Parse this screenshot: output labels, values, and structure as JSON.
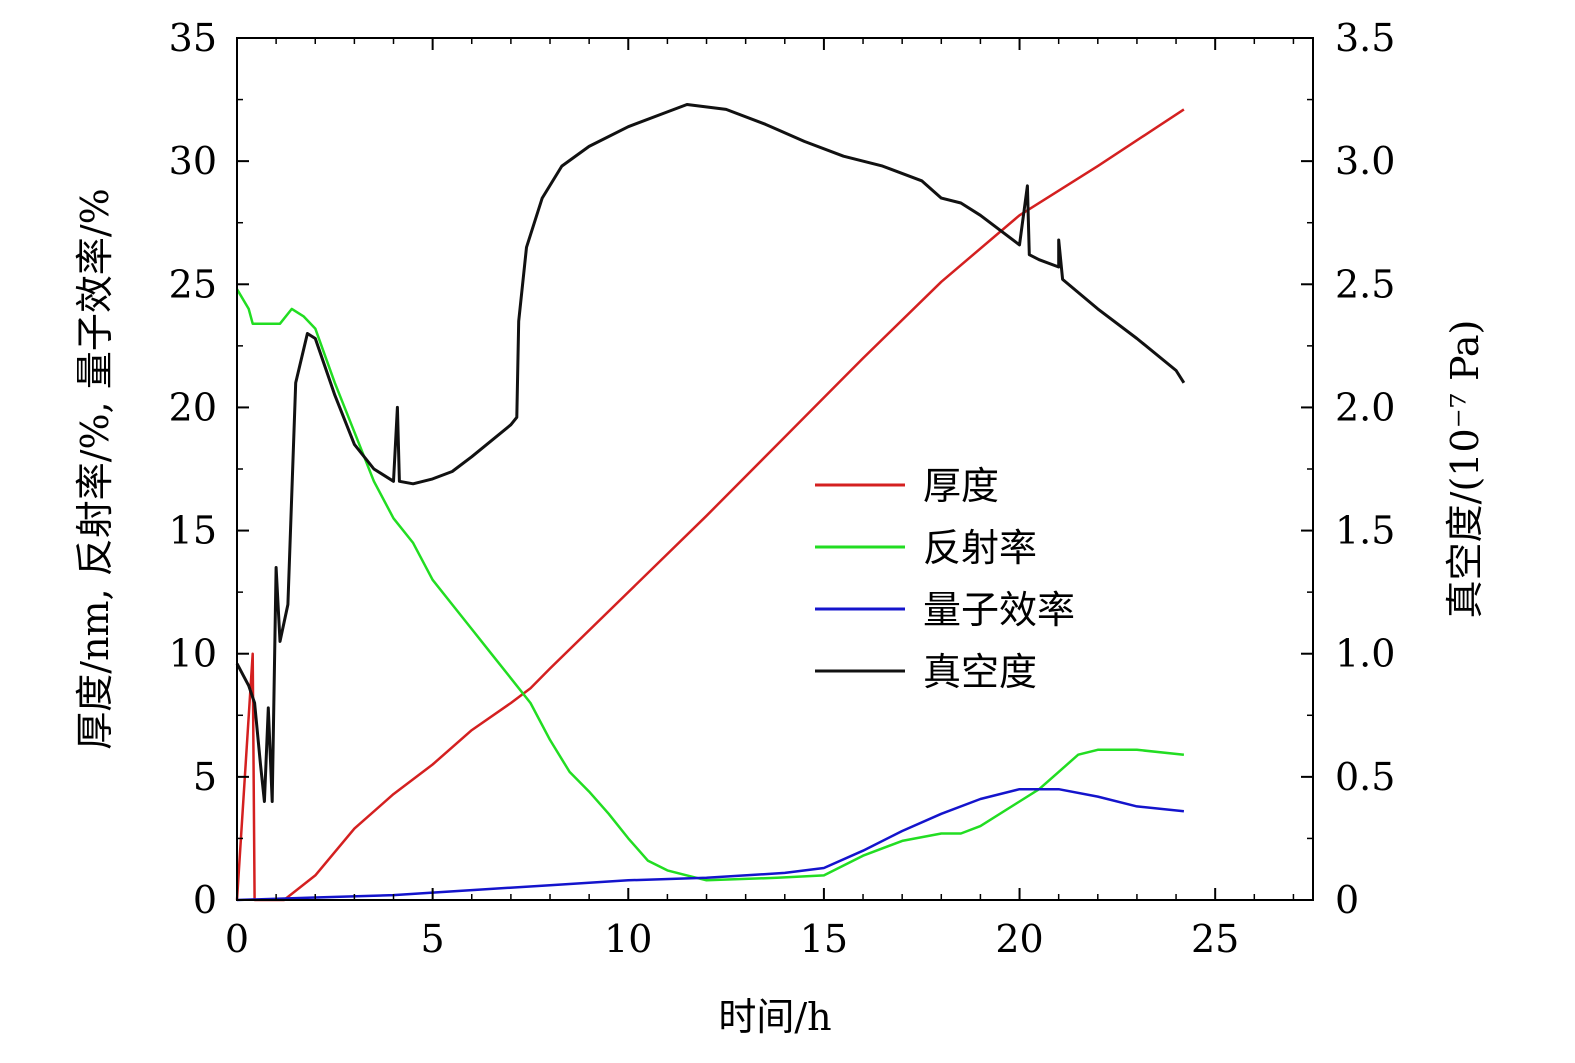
{
  "chart_data": {
    "type": "line",
    "xlabel": "时间/h",
    "ylabel_left": "厚度/nm, 反射率/%, 量子效率/%",
    "ylabel_right": "真空度/(10⁻⁷ Pa)",
    "xlim": [
      0,
      27.5
    ],
    "ylim_left": [
      0,
      35
    ],
    "ylim_right": [
      0,
      3.5
    ],
    "x_ticks": [
      "0",
      "5",
      "10",
      "15",
      "20",
      "25"
    ],
    "y_left_ticks": [
      "0",
      "5",
      "10",
      "15",
      "20",
      "25",
      "30",
      "35"
    ],
    "y_right_ticks": [
      "0",
      "0.5",
      "1.0",
      "1.5",
      "2.0",
      "2.5",
      "3.0",
      "3.5"
    ],
    "grid": false,
    "legend_position": "center-right",
    "series": [
      {
        "name": "厚度",
        "axis": "left",
        "color": "#d42020",
        "points": [
          [
            0,
            0
          ],
          [
            0.4,
            10
          ],
          [
            0.45,
            0
          ],
          [
            1.2,
            0
          ],
          [
            2,
            1
          ],
          [
            3,
            2.9
          ],
          [
            4,
            4.3
          ],
          [
            5,
            5.5
          ],
          [
            6,
            6.9
          ],
          [
            7,
            8
          ],
          [
            7.5,
            8.6
          ],
          [
            8,
            9.4
          ],
          [
            10,
            12.5
          ],
          [
            12,
            15.6
          ],
          [
            14,
            18.8
          ],
          [
            16,
            22
          ],
          [
            18,
            25.1
          ],
          [
            20,
            27.8
          ],
          [
            22,
            29.8
          ],
          [
            24.2,
            32.1
          ]
        ]
      },
      {
        "name": "反射率",
        "axis": "left",
        "color": "#22dd22",
        "points": [
          [
            0,
            24.8
          ],
          [
            0.3,
            24
          ],
          [
            0.4,
            23.4
          ],
          [
            1.1,
            23.4
          ],
          [
            1.4,
            24
          ],
          [
            1.7,
            23.7
          ],
          [
            2,
            23.2
          ],
          [
            2.5,
            21
          ],
          [
            3,
            19
          ],
          [
            3.5,
            17
          ],
          [
            4,
            15.5
          ],
          [
            4.5,
            14.5
          ],
          [
            5,
            13
          ],
          [
            5.5,
            12
          ],
          [
            6,
            11
          ],
          [
            6.5,
            10
          ],
          [
            7,
            9
          ],
          [
            7.5,
            8
          ],
          [
            8,
            6.5
          ],
          [
            8.5,
            5.2
          ],
          [
            9,
            4.4
          ],
          [
            9.5,
            3.5
          ],
          [
            10,
            2.5
          ],
          [
            10.5,
            1.6
          ],
          [
            11,
            1.2
          ],
          [
            11.5,
            1
          ],
          [
            12,
            0.8
          ],
          [
            13.8,
            0.9
          ],
          [
            15,
            1
          ],
          [
            16,
            1.8
          ],
          [
            17,
            2.4
          ],
          [
            18,
            2.7
          ],
          [
            18.5,
            2.7
          ],
          [
            19,
            3
          ],
          [
            20,
            4
          ],
          [
            20.5,
            4.5
          ],
          [
            21,
            5.2
          ],
          [
            21.5,
            5.9
          ],
          [
            22,
            6.1
          ],
          [
            23,
            6.1
          ],
          [
            24.2,
            5.9
          ]
        ]
      },
      {
        "name": "量子效率",
        "axis": "left",
        "color": "#1414cc",
        "points": [
          [
            0,
            0
          ],
          [
            2,
            0.1
          ],
          [
            4,
            0.2
          ],
          [
            6,
            0.4
          ],
          [
            8,
            0.6
          ],
          [
            10,
            0.8
          ],
          [
            12,
            0.9
          ],
          [
            14,
            1.1
          ],
          [
            15,
            1.3
          ],
          [
            16,
            2
          ],
          [
            17,
            2.8
          ],
          [
            18,
            3.5
          ],
          [
            19,
            4.1
          ],
          [
            20,
            4.5
          ],
          [
            21,
            4.5
          ],
          [
            22,
            4.2
          ],
          [
            23,
            3.8
          ],
          [
            24.2,
            3.6
          ]
        ]
      },
      {
        "name": "真空度",
        "axis": "right",
        "color": "#111111",
        "points": [
          [
            0,
            0.96
          ],
          [
            0.3,
            0.87
          ],
          [
            0.45,
            0.8
          ],
          [
            0.6,
            0.55
          ],
          [
            0.7,
            0.4
          ],
          [
            0.8,
            0.78
          ],
          [
            0.9,
            0.4
          ],
          [
            1,
            1.35
          ],
          [
            1.1,
            1.05
          ],
          [
            1.3,
            1.2
          ],
          [
            1.5,
            2.1
          ],
          [
            1.8,
            2.3
          ],
          [
            2,
            2.28
          ],
          [
            2.5,
            2.05
          ],
          [
            3,
            1.85
          ],
          [
            3.5,
            1.75
          ],
          [
            4,
            1.7
          ],
          [
            4.1,
            2
          ],
          [
            4.15,
            1.7
          ],
          [
            4.5,
            1.69
          ],
          [
            5,
            1.71
          ],
          [
            5.5,
            1.74
          ],
          [
            6,
            1.8
          ],
          [
            7,
            1.93
          ],
          [
            7.15,
            1.96
          ],
          [
            7.2,
            2.35
          ],
          [
            7.4,
            2.65
          ],
          [
            7.8,
            2.85
          ],
          [
            8.3,
            2.98
          ],
          [
            9,
            3.06
          ],
          [
            10,
            3.14
          ],
          [
            11,
            3.2
          ],
          [
            11.5,
            3.23
          ],
          [
            12.5,
            3.21
          ],
          [
            13.5,
            3.15
          ],
          [
            14.5,
            3.08
          ],
          [
            15.5,
            3.02
          ],
          [
            16.5,
            2.98
          ],
          [
            17.5,
            2.92
          ],
          [
            18,
            2.85
          ],
          [
            18.5,
            2.83
          ],
          [
            19,
            2.78
          ],
          [
            20,
            2.66
          ],
          [
            20.2,
            2.9
          ],
          [
            20.25,
            2.62
          ],
          [
            20.5,
            2.6
          ],
          [
            21,
            2.57
          ],
          [
            21,
            2.68
          ],
          [
            21.1,
            2.52
          ],
          [
            22,
            2.4
          ],
          [
            23,
            2.28
          ],
          [
            24,
            2.15
          ],
          [
            24.2,
            2.1
          ]
        ]
      }
    ]
  }
}
